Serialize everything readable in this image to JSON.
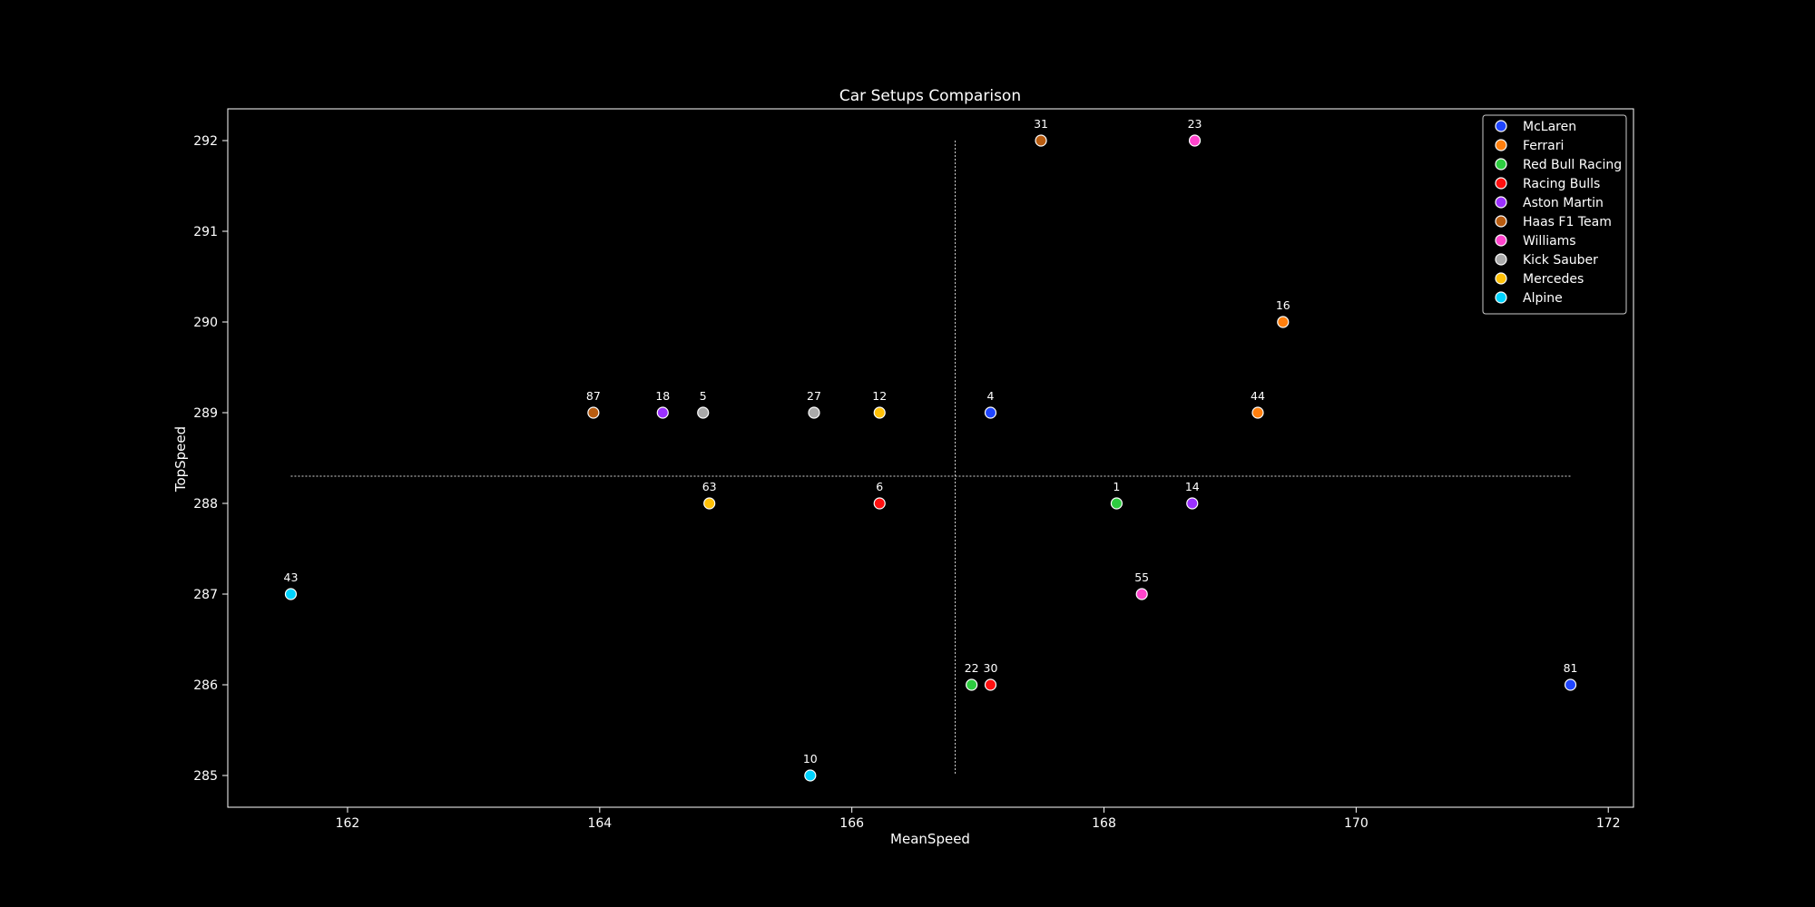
{
  "chart_data": {
    "type": "scatter",
    "title": "Car Setups Comparison",
    "xlabel": "MeanSpeed",
    "ylabel": "TopSpeed",
    "xlim": [
      161.05,
      172.2
    ],
    "ylim": [
      284.65,
      292.35
    ],
    "xticks": [
      162,
      164,
      166,
      168,
      170,
      172
    ],
    "yticks": [
      285,
      286,
      287,
      288,
      289,
      290,
      291,
      292
    ],
    "grid": false,
    "legend_position": "top-right",
    "background": "#000000",
    "reference_lines": {
      "mean_x": 166.82,
      "mean_y": 288.3
    },
    "series": [
      {
        "name": "McLaren",
        "color": "#1f45ff",
        "points": [
          {
            "label": "4",
            "x": 167.1,
            "y": 289
          },
          {
            "label": "81",
            "x": 171.7,
            "y": 286
          }
        ]
      },
      {
        "name": "Ferrari",
        "color": "#ff7f0e",
        "points": [
          {
            "label": "16",
            "x": 169.42,
            "y": 290
          },
          {
            "label": "44",
            "x": 169.22,
            "y": 289
          }
        ]
      },
      {
        "name": "Red Bull Racing",
        "color": "#2ecc40",
        "points": [
          {
            "label": "1",
            "x": 168.1,
            "y": 288
          },
          {
            "label": "22",
            "x": 166.95,
            "y": 286
          }
        ]
      },
      {
        "name": "Racing Bulls",
        "color": "#ff1010",
        "points": [
          {
            "label": "6",
            "x": 166.22,
            "y": 288
          },
          {
            "label": "30",
            "x": 167.1,
            "y": 286
          }
        ]
      },
      {
        "name": "Aston Martin",
        "color": "#9b30ff",
        "points": [
          {
            "label": "18",
            "x": 164.5,
            "y": 289
          },
          {
            "label": "14",
            "x": 168.7,
            "y": 288
          }
        ]
      },
      {
        "name": "Haas F1 Team",
        "color": "#b85c10",
        "points": [
          {
            "label": "87",
            "x": 163.95,
            "y": 289
          },
          {
            "label": "31",
            "x": 167.5,
            "y": 292
          }
        ]
      },
      {
        "name": "Williams",
        "color": "#ff44cc",
        "points": [
          {
            "label": "23",
            "x": 168.72,
            "y": 292
          },
          {
            "label": "55",
            "x": 168.3,
            "y": 287
          }
        ]
      },
      {
        "name": "Kick Sauber",
        "color": "#aaaaaa",
        "points": [
          {
            "label": "5",
            "x": 164.82,
            "y": 289
          },
          {
            "label": "27",
            "x": 165.7,
            "y": 289
          }
        ]
      },
      {
        "name": "Mercedes",
        "color": "#ffc107",
        "points": [
          {
            "label": "12",
            "x": 166.22,
            "y": 289
          },
          {
            "label": "63",
            "x": 164.87,
            "y": 288
          }
        ]
      },
      {
        "name": "Alpine",
        "color": "#00d4ff",
        "points": [
          {
            "label": "43",
            "x": 161.55,
            "y": 287
          },
          {
            "label": "10",
            "x": 165.67,
            "y": 285
          }
        ]
      }
    ]
  }
}
